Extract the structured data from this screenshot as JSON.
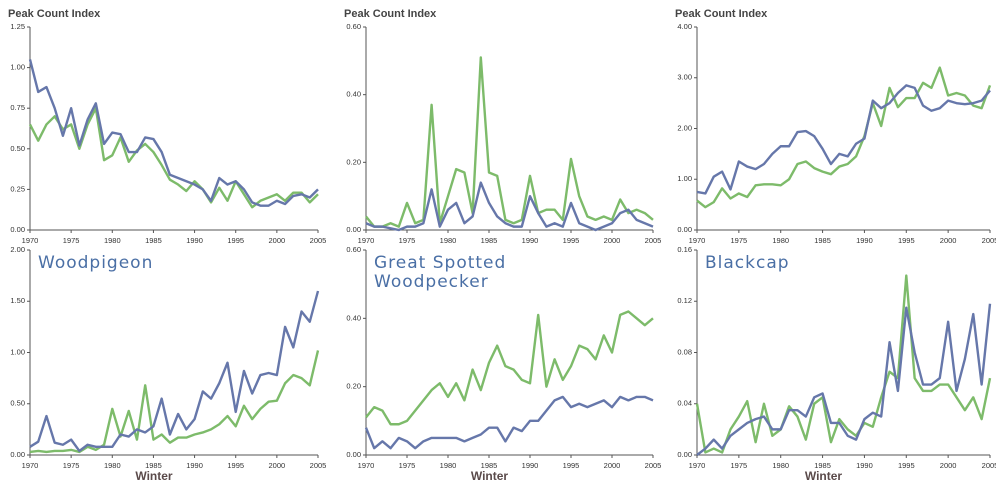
{
  "chart_data": [
    {
      "type": "line",
      "title": "Peak Count Index",
      "x": [
        1970,
        1971,
        1972,
        1973,
        1974,
        1975,
        1976,
        1977,
        1978,
        1979,
        1980,
        1981,
        1982,
        1983,
        1984,
        1985,
        1986,
        1987,
        1988,
        1989,
        1990,
        1991,
        1992,
        1993,
        1994,
        1995,
        1996,
        1997,
        1998,
        1999,
        2000,
        2001,
        2002,
        2003,
        2004,
        2005
      ],
      "series": [
        {
          "color": "#7dbb6a",
          "values": [
            0.65,
            0.55,
            0.65,
            0.7,
            0.62,
            0.65,
            0.5,
            0.65,
            0.75,
            0.43,
            0.46,
            0.57,
            0.42,
            0.49,
            0.53,
            0.48,
            0.4,
            0.31,
            0.28,
            0.24,
            0.3,
            0.25,
            0.17,
            0.26,
            0.18,
            0.3,
            0.22,
            0.14,
            0.18,
            0.2,
            0.22,
            0.18,
            0.23,
            0.23,
            0.17,
            0.22
          ]
        },
        {
          "color": "#6677aa",
          "values": [
            1.05,
            0.85,
            0.88,
            0.75,
            0.58,
            0.75,
            0.52,
            0.68,
            0.78,
            0.53,
            0.6,
            0.59,
            0.48,
            0.48,
            0.57,
            0.56,
            0.48,
            0.34,
            0.32,
            0.3,
            0.28,
            0.25,
            0.18,
            0.32,
            0.28,
            0.3,
            0.25,
            0.17,
            0.15,
            0.15,
            0.18,
            0.16,
            0.21,
            0.22,
            0.2,
            0.25
          ]
        }
      ],
      "xlim": [
        1970,
        2005
      ],
      "xticks": [
        1970,
        1975,
        1980,
        1985,
        1990,
        1995,
        2000,
        2005
      ],
      "ylim": [
        0,
        1.25
      ],
      "yticks": [
        {
          "value": 0,
          "label": "0.00"
        },
        {
          "value": 0.25,
          "label": "0.25"
        },
        {
          "value": 0.5,
          "label": "0.50"
        },
        {
          "value": 0.75,
          "label": "0.75"
        },
        {
          "value": 1,
          "label": "1.00"
        },
        {
          "value": 1.25,
          "label": "1.25"
        }
      ]
    },
    {
      "type": "line",
      "title": "Peak Count Index",
      "x": [
        1970,
        1971,
        1972,
        1973,
        1974,
        1975,
        1976,
        1977,
        1978,
        1979,
        1980,
        1981,
        1982,
        1983,
        1984,
        1985,
        1986,
        1987,
        1988,
        1989,
        1990,
        1991,
        1992,
        1993,
        1994,
        1995,
        1996,
        1997,
        1998,
        1999,
        2000,
        2001,
        2002,
        2003,
        2004,
        2005
      ],
      "series": [
        {
          "color": "#7dbb6a",
          "values": [
            0.04,
            0.01,
            0.01,
            0.02,
            0.01,
            0.08,
            0.02,
            0.03,
            0.37,
            0.02,
            0.1,
            0.18,
            0.17,
            0.05,
            0.51,
            0.17,
            0.16,
            0.03,
            0.02,
            0.03,
            0.16,
            0.05,
            0.06,
            0.06,
            0.03,
            0.21,
            0.1,
            0.04,
            0.03,
            0.04,
            0.03,
            0.09,
            0.05,
            0.06,
            0.05,
            0.03
          ]
        },
        {
          "color": "#6677aa",
          "values": [
            0.02,
            0.01,
            0.01,
            0.005,
            0,
            0.01,
            0.01,
            0.02,
            0.12,
            0.01,
            0.06,
            0.08,
            0.02,
            0.04,
            0.14,
            0.08,
            0.04,
            0.02,
            0.01,
            0.01,
            0.1,
            0.05,
            0.01,
            0.02,
            0.01,
            0.08,
            0.02,
            0.01,
            0,
            0.01,
            0.02,
            0.05,
            0.06,
            0.03,
            0.02,
            0.01
          ]
        }
      ],
      "xlim": [
        1970,
        2005
      ],
      "xticks": [
        1970,
        1975,
        1980,
        1985,
        1990,
        1995,
        2000,
        2005
      ],
      "ylim": [
        0,
        0.6
      ],
      "yticks": [
        {
          "value": 0,
          "label": "0.00"
        },
        {
          "value": 0.2,
          "label": "0.20"
        },
        {
          "value": 0.4,
          "label": "0.40"
        },
        {
          "value": 0.6,
          "label": "0.60"
        }
      ]
    },
    {
      "type": "line",
      "title": "Peak Count Index",
      "x": [
        1970,
        1971,
        1972,
        1973,
        1974,
        1975,
        1976,
        1977,
        1978,
        1979,
        1980,
        1981,
        1982,
        1983,
        1984,
        1985,
        1986,
        1987,
        1988,
        1989,
        1990,
        1991,
        1992,
        1993,
        1994,
        1995,
        1996,
        1997,
        1998,
        1999,
        2000,
        2001,
        2002,
        2003,
        2004,
        2005
      ],
      "series": [
        {
          "color": "#7dbb6a",
          "values": [
            0.58,
            0.45,
            0.55,
            0.82,
            0.62,
            0.72,
            0.65,
            0.88,
            0.9,
            0.9,
            0.88,
            1.0,
            1.3,
            1.35,
            1.22,
            1.15,
            1.1,
            1.25,
            1.3,
            1.45,
            1.85,
            2.5,
            2.05,
            2.8,
            2.42,
            2.6,
            2.6,
            2.9,
            2.8,
            3.2,
            2.65,
            2.7,
            2.65,
            2.45,
            2.4,
            2.85
          ]
        },
        {
          "color": "#6677aa",
          "values": [
            0.75,
            0.72,
            1.05,
            1.15,
            0.8,
            1.35,
            1.25,
            1.2,
            1.3,
            1.5,
            1.65,
            1.65,
            1.93,
            1.95,
            1.85,
            1.6,
            1.3,
            1.5,
            1.45,
            1.7,
            1.8,
            2.55,
            2.4,
            2.5,
            2.7,
            2.85,
            2.8,
            2.45,
            2.35,
            2.4,
            2.55,
            2.5,
            2.48,
            2.5,
            2.55,
            2.75
          ]
        }
      ],
      "xlim": [
        1970,
        2005
      ],
      "xticks": [
        1970,
        1975,
        1980,
        1985,
        1990,
        1995,
        2000,
        2005
      ],
      "ylim": [
        0,
        4
      ],
      "yticks": [
        {
          "value": 0,
          "label": "0.00"
        },
        {
          "value": 1,
          "label": "1.00"
        },
        {
          "value": 2,
          "label": "2.00"
        },
        {
          "value": 3,
          "label": "3.00"
        },
        {
          "value": 4,
          "label": "4.00"
        }
      ]
    },
    {
      "type": "line",
      "annotation": "Woodpigeon",
      "xlabel": "Winter",
      "x": [
        1970,
        1971,
        1972,
        1973,
        1974,
        1975,
        1976,
        1977,
        1978,
        1979,
        1980,
        1981,
        1982,
        1983,
        1984,
        1985,
        1986,
        1987,
        1988,
        1989,
        1990,
        1991,
        1992,
        1993,
        1994,
        1995,
        1996,
        1997,
        1998,
        1999,
        2000,
        2001,
        2002,
        2003,
        2004,
        2005
      ],
      "series": [
        {
          "color": "#7dbb6a",
          "values": [
            0.03,
            0.04,
            0.03,
            0.04,
            0.04,
            0.05,
            0.03,
            0.08,
            0.05,
            0.1,
            0.45,
            0.18,
            0.43,
            0.15,
            0.68,
            0.15,
            0.2,
            0.12,
            0.17,
            0.17,
            0.2,
            0.22,
            0.25,
            0.3,
            0.38,
            0.28,
            0.48,
            0.35,
            0.45,
            0.52,
            0.53,
            0.7,
            0.78,
            0.75,
            0.68,
            1.02
          ]
        },
        {
          "color": "#6677aa",
          "values": [
            0.08,
            0.13,
            0.38,
            0.12,
            0.1,
            0.15,
            0.04,
            0.1,
            0.08,
            0.08,
            0.08,
            0.2,
            0.18,
            0.25,
            0.22,
            0.28,
            0.55,
            0.2,
            0.4,
            0.25,
            0.35,
            0.62,
            0.55,
            0.7,
            0.9,
            0.42,
            0.82,
            0.6,
            0.78,
            0.8,
            0.78,
            1.25,
            1.05,
            1.4,
            1.3,
            1.6
          ]
        }
      ],
      "xlim": [
        1970,
        2005
      ],
      "xticks": [
        1970,
        1975,
        1980,
        1985,
        1990,
        1995,
        2000,
        2005
      ],
      "ylim": [
        0,
        2
      ],
      "yticks": [
        {
          "value": 0,
          "label": "0.00"
        },
        {
          "value": 0.5,
          "label": "0.50"
        },
        {
          "value": 1,
          "label": "1.00"
        },
        {
          "value": 1.5,
          "label": "1.50"
        },
        {
          "value": 2,
          "label": "2.00"
        }
      ]
    },
    {
      "type": "line",
      "annotation": "Great Spotted Woodpecker",
      "xlabel": "Winter",
      "x": [
        1970,
        1971,
        1972,
        1973,
        1974,
        1975,
        1976,
        1977,
        1978,
        1979,
        1980,
        1981,
        1982,
        1983,
        1984,
        1985,
        1986,
        1987,
        1988,
        1989,
        1990,
        1991,
        1992,
        1993,
        1994,
        1995,
        1996,
        1997,
        1998,
        1999,
        2000,
        2001,
        2002,
        2003,
        2004,
        2005
      ],
      "series": [
        {
          "color": "#7dbb6a",
          "values": [
            0.11,
            0.14,
            0.13,
            0.09,
            0.09,
            0.1,
            0.13,
            0.16,
            0.19,
            0.21,
            0.17,
            0.21,
            0.16,
            0.25,
            0.19,
            0.27,
            0.32,
            0.26,
            0.25,
            0.22,
            0.21,
            0.41,
            0.2,
            0.28,
            0.22,
            0.26,
            0.32,
            0.31,
            0.28,
            0.35,
            0.3,
            0.41,
            0.42,
            0.4,
            0.38,
            0.4
          ]
        },
        {
          "color": "#6677aa",
          "values": [
            0.08,
            0.02,
            0.04,
            0.02,
            0.05,
            0.04,
            0.02,
            0.04,
            0.05,
            0.05,
            0.05,
            0.05,
            0.04,
            0.05,
            0.06,
            0.08,
            0.08,
            0.04,
            0.08,
            0.07,
            0.1,
            0.1,
            0.13,
            0.16,
            0.17,
            0.14,
            0.15,
            0.14,
            0.15,
            0.16,
            0.14,
            0.17,
            0.16,
            0.17,
            0.17,
            0.16
          ]
        }
      ],
      "xlim": [
        1970,
        2005
      ],
      "xticks": [
        1970,
        1975,
        1980,
        1985,
        1990,
        1995,
        2000,
        2005
      ],
      "ylim": [
        0,
        0.6
      ],
      "yticks": [
        {
          "value": 0,
          "label": "0.00"
        },
        {
          "value": 0.2,
          "label": "0.20"
        },
        {
          "value": 0.4,
          "label": "0.40"
        },
        {
          "value": 0.6,
          "label": "0.60"
        }
      ]
    },
    {
      "type": "line",
      "annotation": "Blackcap",
      "xlabel": "Winter",
      "x": [
        1970,
        1971,
        1972,
        1973,
        1974,
        1975,
        1976,
        1977,
        1978,
        1979,
        1980,
        1981,
        1982,
        1983,
        1984,
        1985,
        1986,
        1987,
        1988,
        1989,
        1990,
        1991,
        1992,
        1993,
        1994,
        1995,
        1996,
        1997,
        1998,
        1999,
        2000,
        2001,
        2002,
        2003,
        2004,
        2005
      ],
      "series": [
        {
          "color": "#7dbb6a",
          "values": [
            0.04,
            0.002,
            0.005,
            0.002,
            0.02,
            0.03,
            0.042,
            0.01,
            0.04,
            0.015,
            0.02,
            0.038,
            0.03,
            0.012,
            0.04,
            0.045,
            0.01,
            0.028,
            0.02,
            0.015,
            0.025,
            0.022,
            0.045,
            0.065,
            0.06,
            0.14,
            0.06,
            0.05,
            0.05,
            0.055,
            0.055,
            0.045,
            0.035,
            0.045,
            0.028,
            0.06
          ]
        },
        {
          "color": "#6677aa",
          "values": [
            0,
            0.005,
            0.012,
            0.005,
            0.015,
            0.02,
            0.025,
            0.028,
            0.03,
            0.02,
            0.02,
            0.035,
            0.035,
            0.03,
            0.045,
            0.048,
            0.025,
            0.025,
            0.015,
            0.012,
            0.028,
            0.033,
            0.03,
            0.088,
            0.05,
            0.115,
            0.08,
            0.055,
            0.055,
            0.06,
            0.104,
            0.05,
            0.075,
            0.11,
            0.055,
            0.118
          ]
        }
      ],
      "xlim": [
        1970,
        2005
      ],
      "xticks": [
        1970,
        1975,
        1980,
        1985,
        1990,
        1995,
        2000,
        2005
      ],
      "ylim": [
        0,
        0.16
      ],
      "yticks": [
        {
          "value": 0,
          "label": "0.00"
        },
        {
          "value": 0.04,
          "label": "0.04"
        },
        {
          "value": 0.08,
          "label": "0.08"
        },
        {
          "value": 0.12,
          "label": "0.12"
        },
        {
          "value": 0.16,
          "label": "0.16"
        }
      ]
    }
  ]
}
